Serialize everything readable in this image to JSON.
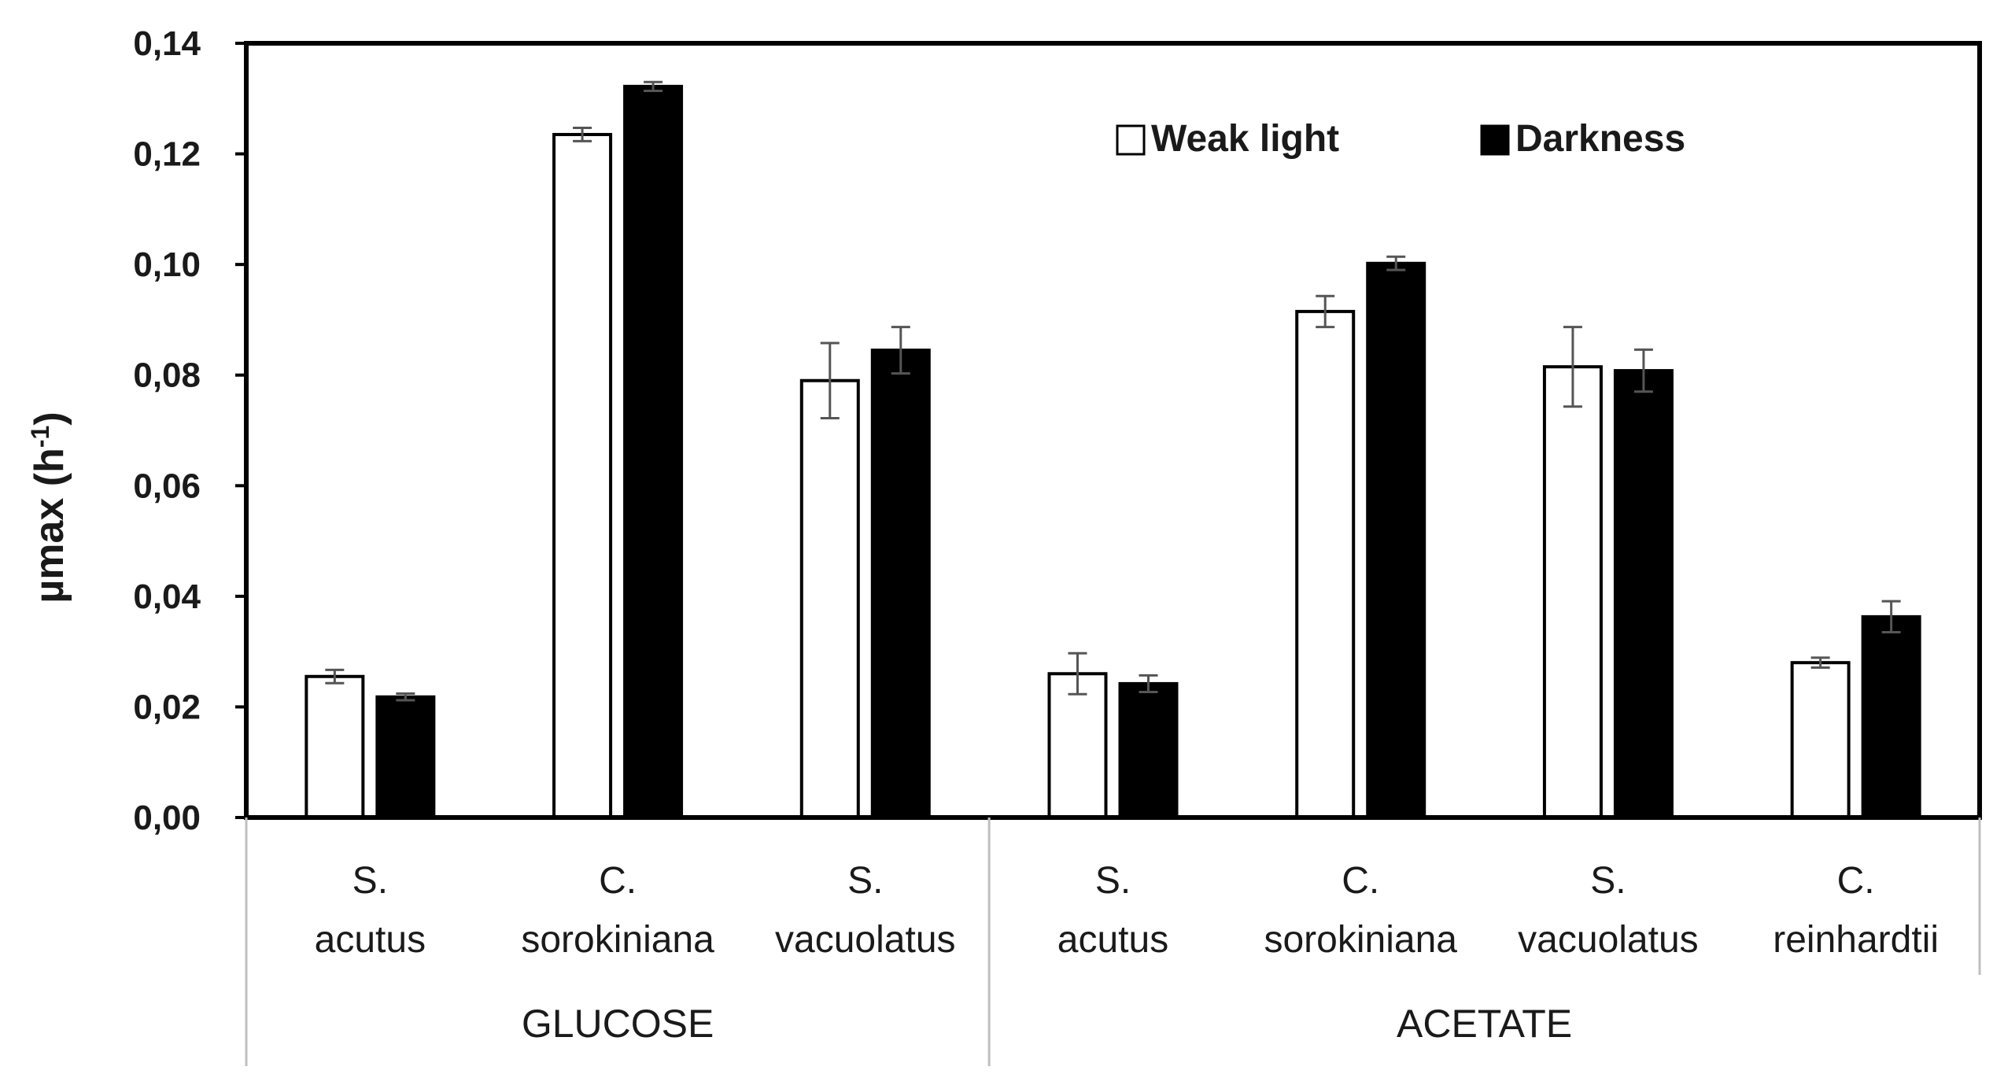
{
  "chart_data": {
    "type": "bar",
    "ylabel": "µmax (h",
    "ylabel_sup": "-1",
    "ylabel_end": ")",
    "ylim": [
      0,
      0.14
    ],
    "yticks": [
      "0,00",
      "0,02",
      "0,04",
      "0,06",
      "0,08",
      "0,10",
      "0,12",
      "0,14"
    ],
    "legend_position": "top-right",
    "groups": [
      {
        "name": "GLUCOSE",
        "categories": [
          {
            "line1": "S.",
            "line2": "acutus"
          },
          {
            "line1": "C.",
            "line2": "sorokiniana"
          },
          {
            "line1": "S.",
            "line2": "vacuolatus"
          }
        ]
      },
      {
        "name": "ACETATE",
        "categories": [
          {
            "line1": "S.",
            "line2": "acutus"
          },
          {
            "line1": "C.",
            "line2": "sorokiniana"
          },
          {
            "line1": "S.",
            "line2": "vacuolatus"
          },
          {
            "line1": "C.",
            "line2": "reinhardtii"
          }
        ]
      }
    ],
    "series": [
      {
        "name": "Weak light",
        "color": "#ffffff",
        "values": [
          0.0255,
          0.1235,
          0.079,
          0.026,
          0.0915,
          0.0815,
          0.028
        ],
        "errors": [
          0.0012,
          0.0012,
          0.0068,
          0.0037,
          0.0028,
          0.0072,
          0.0009
        ]
      },
      {
        "name": "Darkness",
        "color": "#000000",
        "values": [
          0.0218,
          0.1322,
          0.0845,
          0.0242,
          0.1002,
          0.0808,
          0.0363
        ],
        "errors": [
          0.0006,
          0.0008,
          0.0042,
          0.0015,
          0.0012,
          0.0038,
          0.0028
        ]
      }
    ]
  }
}
